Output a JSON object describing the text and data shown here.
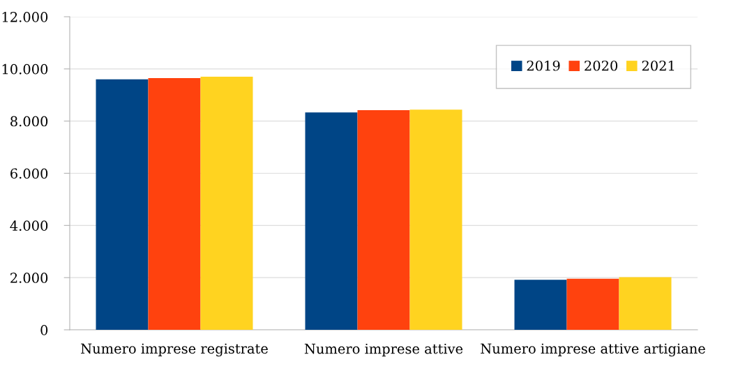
{
  "chart_data": {
    "type": "bar",
    "categories": [
      "Numero imprese registrate",
      "Numero imprese attive",
      "Numero imprese attive artigiane"
    ],
    "series": [
      {
        "name": "2019",
        "color": "#004586",
        "values": [
          9600,
          8330,
          1920
        ]
      },
      {
        "name": "2020",
        "color": "#ff420e",
        "values": [
          9650,
          8420,
          1960
        ]
      },
      {
        "name": "2021",
        "color": "#ffd320",
        "values": [
          9700,
          8440,
          2020
        ]
      }
    ],
    "ylim": [
      0,
      12000
    ],
    "yticks": [
      0,
      {
        "value": 2000,
        "label": "2.000"
      },
      {
        "value": 4000,
        "label": "4.000"
      },
      {
        "value": 6000,
        "label": "6.000"
      },
      {
        "value": 8000,
        "label": "8.000"
      },
      {
        "value": 10000,
        "label": "10.000"
      },
      {
        "value": 12000,
        "label": "12.000"
      }
    ],
    "grid": "y",
    "legend": "top right"
  }
}
